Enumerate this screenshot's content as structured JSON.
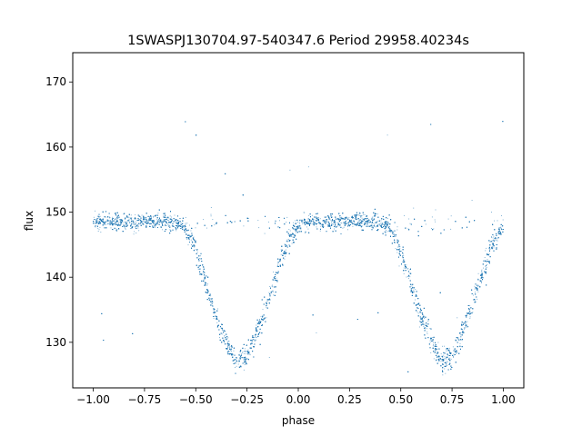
{
  "chart_data": {
    "type": "scatter",
    "title": "1SWASPJ130704.97-540347.6 Period 29958.40234s",
    "xlabel": "phase",
    "ylabel": "flux",
    "xlim": [
      -1.1,
      1.1
    ],
    "ylim": [
      123,
      174.5
    ],
    "x_ticks": [
      -1.0,
      -0.75,
      -0.5,
      -0.25,
      0.0,
      0.25,
      0.5,
      0.75,
      1.0
    ],
    "x_tick_labels": [
      "−1.00",
      "−0.75",
      "−0.50",
      "−0.25",
      "0.00",
      "0.25",
      "0.50",
      "0.75",
      "1.00"
    ],
    "y_ticks": [
      130,
      140,
      150,
      160,
      170
    ],
    "y_tick_labels": [
      "130",
      "140",
      "150",
      "160",
      "170"
    ],
    "grid": false,
    "legend": "none",
    "marker_color": "#1f77b4",
    "series": [
      {
        "x": [
          -1.0,
          -0.9,
          -0.8,
          -0.7,
          -0.6,
          -0.55,
          -0.5,
          -0.45,
          -0.4,
          -0.35,
          -0.3,
          -0.25,
          -0.2,
          -0.15,
          -0.1,
          -0.05,
          0.0,
          0.05,
          0.1,
          0.2,
          0.3,
          0.4,
          0.45,
          0.5,
          0.55,
          0.6,
          0.65,
          0.7,
          0.75,
          0.8,
          0.85,
          0.9,
          0.95,
          1.0
        ],
        "y": [
          148.5,
          148.5,
          148.5,
          148.5,
          148.5,
          147.5,
          144,
          139,
          134,
          130,
          127,
          128,
          131.5,
          136,
          141,
          145.5,
          148,
          148.5,
          148.5,
          148.5,
          148.5,
          148.5,
          147.5,
          144,
          139,
          134,
          130,
          127,
          128,
          131.5,
          136,
          141,
          145.5,
          148
        ]
      }
    ]
  }
}
